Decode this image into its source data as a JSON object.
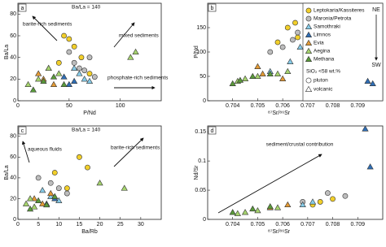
{
  "chart_data": [
    {
      "type": "scatter",
      "panel": "a",
      "xlabel": "P/Nd",
      "ylabel": "Ba/La",
      "xlim": [
        0,
        140
      ],
      "xticks": [
        0,
        50,
        100
      ],
      "ylim": [
        0,
        90
      ],
      "yticks": [
        0,
        20,
        40,
        60,
        80
      ],
      "annotations": [
        "Ba/La = 140",
        "barite-rich sediments",
        "mixed sediments",
        "phosphate-rich sediments"
      ],
      "series": [
        {
          "color": "#f2cf2a",
          "marker": "circle",
          "x": [
            45,
            50,
            55,
            62,
            40,
            70
          ],
          "y": [
            60,
            57,
            50,
            40,
            35,
            25
          ]
        },
        {
          "color": "#bdbdbd",
          "marker": "circle",
          "x": [
            55,
            60,
            65,
            70,
            75,
            50
          ],
          "y": [
            35,
            30,
            28,
            40,
            22,
            45
          ]
        },
        {
          "color": "#86cbe8",
          "marker": "triangle",
          "x": [
            60,
            65,
            55,
            70
          ],
          "y": [
            25,
            20,
            30,
            18
          ]
        },
        {
          "color": "#2f6eb5",
          "marker": "triangle",
          "x": [
            50,
            45,
            55
          ],
          "y": [
            15,
            22,
            18
          ]
        },
        {
          "color": "#e39a35",
          "marker": "triangle",
          "x": [
            20,
            25,
            30,
            35
          ],
          "y": [
            25,
            20,
            30,
            15
          ]
        },
        {
          "color": "#a6d46e",
          "marker": "triangle",
          "x": [
            10,
            20,
            30,
            40,
            110,
            115
          ],
          "y": [
            15,
            20,
            30,
            25,
            40,
            45
          ]
        },
        {
          "color": "#5a9a3a",
          "marker": "triangle",
          "x": [
            15,
            25,
            35,
            45
          ],
          "y": [
            10,
            18,
            22,
            15
          ]
        }
      ]
    },
    {
      "type": "scatter",
      "panel": "b",
      "xlabel": "⁸⁷Sr/⁸⁶Sr",
      "ylabel": "P/Nd",
      "xlim": [
        0.703,
        0.71
      ],
      "xticks": [
        0.704,
        0.705,
        0.706,
        0.707,
        0.708,
        0.709
      ],
      "ylim": [
        0,
        200
      ],
      "yticks": [
        0,
        50,
        100,
        150
      ],
      "legend": {
        "corner": "right",
        "extra": [
          "SiO₂ <58 wt.%",
          "pluton",
          "volcanic"
        ],
        "direction": [
          "NE",
          "SW"
        ]
      },
      "series": [
        {
          "name": "Leptokaria/Kassiteres",
          "color": "#f2cf2a",
          "marker": "circle",
          "x": [
            0.7062,
            0.7065,
            0.7058,
            0.7066
          ],
          "y": [
            150,
            160,
            120,
            130
          ]
        },
        {
          "name": "Maronia/Petrota",
          "color": "#bdbdbd",
          "marker": "circle",
          "x": [
            0.706,
            0.7064,
            0.7055,
            0.7066
          ],
          "y": [
            110,
            125,
            100,
            140
          ]
        },
        {
          "name": "Samothraki",
          "color": "#86cbe8",
          "marker": "triangle",
          "x": [
            0.7063,
            0.7055,
            0.7067
          ],
          "y": [
            80,
            60,
            110
          ]
        },
        {
          "name": "Limnos",
          "color": "#2f6eb5",
          "marker": "triangle",
          "x": [
            0.7094,
            0.7096
          ],
          "y": [
            40,
            35
          ]
        },
        {
          "name": "Evia",
          "color": "#e39a35",
          "marker": "triangle",
          "x": [
            0.7052,
            0.706,
            0.705
          ],
          "y": [
            55,
            45,
            70
          ]
        },
        {
          "name": "Aegina",
          "color": "#a6d46e",
          "marker": "triangle",
          "x": [
            0.705,
            0.7058,
            0.7062,
            0.7045,
            0.7042
          ],
          "y": [
            50,
            55,
            60,
            45,
            40
          ]
        },
        {
          "name": "Methana",
          "color": "#5a9a3a",
          "marker": "triangle",
          "x": [
            0.704,
            0.7043,
            0.7048,
            0.7055
          ],
          "y": [
            35,
            42,
            50,
            55
          ]
        }
      ]
    },
    {
      "type": "scatter",
      "panel": "c",
      "xlabel": "Ba/Rb",
      "ylabel": "Ba/La",
      "xlim": [
        0,
        35
      ],
      "xticks": [
        0,
        5,
        10,
        15,
        20,
        25,
        30
      ],
      "ylim": [
        0,
        90
      ],
      "yticks": [
        0,
        20,
        40,
        60,
        80
      ],
      "annotations": [
        "Ba/La = 140",
        "aqueous fluids",
        "barite-rich sediments"
      ],
      "series": [
        {
          "color": "#f2cf2a",
          "marker": "circle",
          "x": [
            15,
            17,
            9,
            12
          ],
          "y": [
            60,
            50,
            45,
            30
          ]
        },
        {
          "color": "#bdbdbd",
          "marker": "circle",
          "x": [
            5,
            8,
            10,
            12
          ],
          "y": [
            40,
            35,
            30,
            25
          ]
        },
        {
          "color": "#86cbe8",
          "marker": "triangle",
          "x": [
            6,
            8,
            10
          ],
          "y": [
            28,
            22,
            18
          ]
        },
        {
          "color": "#2f6eb5",
          "marker": "triangle",
          "x": [
            7,
            9
          ],
          "y": [
            15,
            20
          ]
        },
        {
          "color": "#e39a35",
          "marker": "triangle",
          "x": [
            4,
            6,
            8
          ],
          "y": [
            20,
            15,
            25
          ]
        },
        {
          "color": "#a6d46e",
          "marker": "triangle",
          "x": [
            2,
            3,
            4,
            20,
            26
          ],
          "y": [
            15,
            20,
            12,
            35,
            30
          ]
        },
        {
          "color": "#5a9a3a",
          "marker": "triangle",
          "x": [
            3,
            5,
            7,
            9
          ],
          "y": [
            10,
            18,
            14,
            22
          ]
        }
      ]
    },
    {
      "type": "scatter",
      "panel": "d",
      "xlabel": "⁸⁷Sr/⁸⁶Sr",
      "ylabel": "Nd/Sr",
      "xlim": [
        0.703,
        0.71
      ],
      "xticks": [
        0.704,
        0.705,
        0.706,
        0.707,
        0.708,
        0.709
      ],
      "ylim": [
        0,
        0.16
      ],
      "yticks": [
        0,
        0.05,
        0.1,
        0.15
      ],
      "annotations": [
        "sediment/crustal contribution"
      ],
      "series": [
        {
          "color": "#f2cf2a",
          "marker": "circle",
          "x": [
            0.7075,
            0.708,
            0.7072
          ],
          "y": [
            0.03,
            0.035,
            0.025
          ]
        },
        {
          "color": "#bdbdbd",
          "marker": "circle",
          "x": [
            0.7068,
            0.7078,
            0.7085
          ],
          "y": [
            0.03,
            0.045,
            0.04
          ]
        },
        {
          "color": "#86cbe8",
          "marker": "triangle",
          "x": [
            0.7068,
            0.7072
          ],
          "y": [
            0.025,
            0.03
          ]
        },
        {
          "color": "#2f6eb5",
          "marker": "triangle",
          "x": [
            0.7093,
            0.7095
          ],
          "y": [
            0.155,
            0.09
          ]
        },
        {
          "color": "#e39a35",
          "marker": "triangle",
          "x": [
            0.7055,
            0.7062
          ],
          "y": [
            0.02,
            0.025
          ]
        },
        {
          "color": "#a6d46e",
          "marker": "triangle",
          "x": [
            0.7042,
            0.705,
            0.7058,
            0.7045
          ],
          "y": [
            0.01,
            0.015,
            0.02,
            0.012
          ]
        },
        {
          "color": "#5a9a3a",
          "marker": "triangle",
          "x": [
            0.704,
            0.7048,
            0.7055
          ],
          "y": [
            0.012,
            0.018,
            0.022
          ]
        }
      ]
    }
  ]
}
